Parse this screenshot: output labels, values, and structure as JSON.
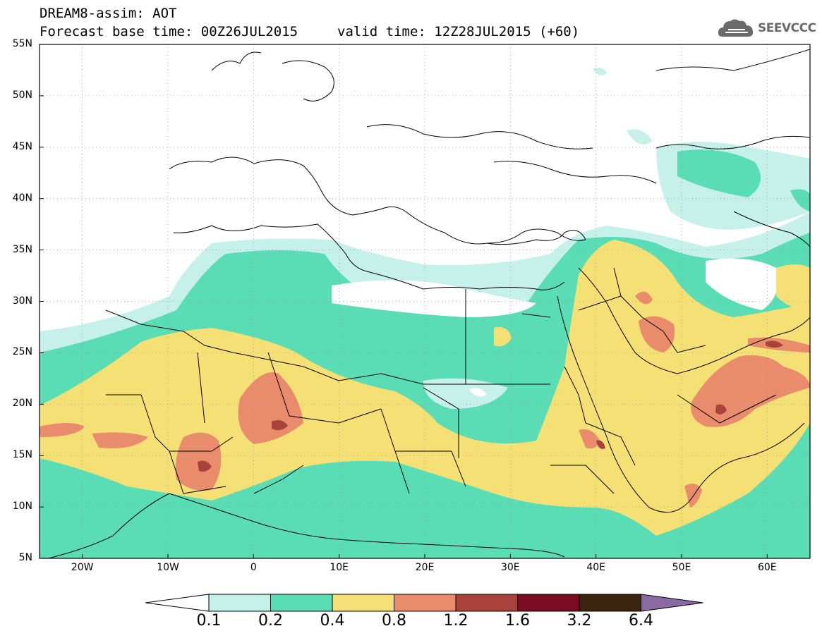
{
  "header": {
    "title_line1": "DREAM8-assim: AOT",
    "title_line2": "Forecast base time: 00Z26JUL2015",
    "valid_time": "valid time: 12Z28JUL2015 (+60)",
    "logo_text": "SEEVCCC"
  },
  "axes": {
    "lat_labels": [
      "55N",
      "50N",
      "45N",
      "40N",
      "35N",
      "30N",
      "25N",
      "20N",
      "15N",
      "10N",
      "5N"
    ],
    "lon_labels": [
      "20W",
      "10W",
      "0",
      "10E",
      "20E",
      "30E",
      "40E",
      "50E",
      "60E"
    ],
    "lat_range": [
      5,
      55
    ],
    "lon_range": [
      -25,
      65
    ]
  },
  "colorbar": {
    "labels": [
      "0.1",
      "0.2",
      "0.4",
      "0.8",
      "1.2",
      "1.6",
      "3.2",
      "6.4"
    ],
    "colors": [
      "#ffffff",
      "#c6f1ea",
      "#5adcb4",
      "#f5e075",
      "#e98c6b",
      "#a9423a",
      "#7a0b22",
      "#3b2410",
      "#8a6aa3"
    ]
  }
}
